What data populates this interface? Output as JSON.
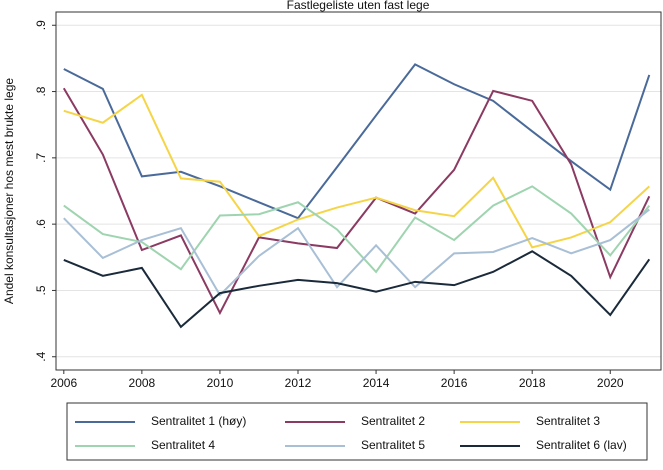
{
  "chart_data": {
    "type": "line",
    "title": "Fastlegeliste uten fast lege",
    "y_label": "Andel konsultasjoner hos mest brukte lege",
    "x": [
      2006,
      2007,
      2008,
      2009,
      2010,
      2011,
      2012,
      2013,
      2014,
      2015,
      2016,
      2017,
      2018,
      2019,
      2020,
      2021
    ],
    "xlim": [
      2005.8,
      2021.3
    ],
    "xticks": [
      2006,
      2008,
      2010,
      2012,
      2014,
      2016,
      2018,
      2020
    ],
    "ylim": [
      0.38,
      0.92
    ],
    "yticks": [
      {
        "value": 0.4,
        "label": ".4"
      },
      {
        "value": 0.5,
        "label": ".5"
      },
      {
        "value": 0.6,
        "label": ".6"
      },
      {
        "value": 0.7,
        "label": ".7"
      },
      {
        "value": 0.8,
        "label": ".8"
      },
      {
        "value": 0.9,
        "label": ".9"
      }
    ],
    "grid": true,
    "legend": "bottom",
    "series": [
      {
        "name": "Sentralitet 1 (høy)",
        "color": "#4a6a9a",
        "values": [
          0.834,
          0.804,
          0.672,
          0.679,
          0.657,
          0.633,
          0.609,
          0.686,
          0.764,
          0.841,
          0.811,
          0.786,
          0.74,
          0.695,
          0.652,
          0.825
        ]
      },
      {
        "name": "Sentralitet 2",
        "color": "#8b3a62",
        "values": [
          0.805,
          0.705,
          0.561,
          0.583,
          0.466,
          0.58,
          0.571,
          0.564,
          0.64,
          0.616,
          0.682,
          0.801,
          0.786,
          0.69,
          0.52,
          0.642
        ]
      },
      {
        "name": "Sentralitet 3",
        "color": "#f5d547",
        "values": [
          0.771,
          0.753,
          0.795,
          0.669,
          0.664,
          0.582,
          0.607,
          0.625,
          0.64,
          0.621,
          0.612,
          0.67,
          0.565,
          0.58,
          0.603,
          0.657
        ]
      },
      {
        "name": "Sentralitet 4",
        "color": "#9fd4b0",
        "values": [
          0.628,
          0.585,
          0.573,
          0.532,
          0.613,
          0.615,
          0.633,
          0.592,
          0.528,
          0.61,
          0.576,
          0.628,
          0.657,
          0.616,
          0.553,
          0.628
        ]
      },
      {
        "name": "Sentralitet 5",
        "color": "#a8bfd6",
        "values": [
          0.609,
          0.549,
          0.576,
          0.594,
          0.493,
          0.552,
          0.594,
          0.505,
          0.568,
          0.505,
          0.556,
          0.558,
          0.579,
          0.556,
          0.576,
          0.622
        ]
      },
      {
        "name": "Sentralitet 6 (lav)",
        "color": "#1a2a3a",
        "values": [
          0.546,
          0.522,
          0.534,
          0.445,
          0.496,
          0.507,
          0.516,
          0.511,
          0.498,
          0.513,
          0.508,
          0.528,
          0.559,
          0.522,
          0.463,
          0.547
        ]
      }
    ]
  }
}
